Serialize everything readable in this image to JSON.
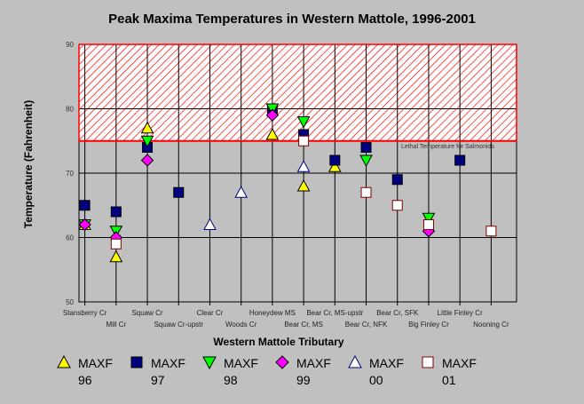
{
  "chart_data": {
    "type": "scatter",
    "title": "Peak Maxima Temperatures in Western Mattole, 1996-2001",
    "xlabel": "Western Mattole Tributary",
    "ylabel": "Temperature (Fahrenheit)",
    "ylim": [
      50,
      90
    ],
    "yticks": [
      "50",
      "60",
      "70",
      "80",
      "90"
    ],
    "grid": "on",
    "categories": [
      "Stansberry Cr",
      "Mill Cr",
      "Squaw Cr",
      "Squaw Cr-upstr",
      "Clear Cr",
      "Woods Cr",
      "Honeydew MS",
      "Bear Cr, MS",
      "Bear Cr, MS-upstr",
      "Bear Cr, NFK",
      "Bear Cr, SFK",
      "Big Finley Cr",
      "Little Finley Cr",
      "Nooning Cr"
    ],
    "threshold": {
      "value": 75,
      "label": "Lethal Temperature for Salmonids",
      "color": "#ff0000"
    },
    "series": [
      {
        "name": "MAXF 96",
        "marker": "triangle-up",
        "color": "#ffff00",
        "values": [
          62,
          57,
          77,
          null,
          null,
          null,
          76,
          68,
          71,
          null,
          null,
          null,
          null,
          null
        ]
      },
      {
        "name": "MAXF 97",
        "marker": "square",
        "color": "#000080",
        "values": [
          65,
          64,
          74,
          67,
          null,
          null,
          80,
          76,
          72,
          74,
          69,
          null,
          72,
          null
        ]
      },
      {
        "name": "MAXF 98",
        "marker": "triangle-down",
        "color": "#00ff00",
        "values": [
          62,
          61,
          75,
          null,
          null,
          null,
          80,
          78,
          null,
          72,
          null,
          63,
          null,
          null
        ]
      },
      {
        "name": "MAXF 99",
        "marker": "diamond",
        "color": "#ff00ff",
        "values": [
          62,
          60,
          72,
          null,
          null,
          null,
          79,
          null,
          null,
          null,
          null,
          61,
          null,
          null
        ]
      },
      {
        "name": "MAXF 00",
        "marker": "triangle-up-open",
        "color": "#000080",
        "values": [
          null,
          null,
          null,
          null,
          62,
          67,
          null,
          71,
          null,
          null,
          null,
          null,
          null,
          null
        ]
      },
      {
        "name": "MAXF 01",
        "marker": "square-open",
        "color": "#800000",
        "values": [
          null,
          59,
          null,
          null,
          null,
          null,
          null,
          75,
          null,
          67,
          65,
          62,
          null,
          61
        ]
      }
    ],
    "legend_placement": "bottom"
  }
}
